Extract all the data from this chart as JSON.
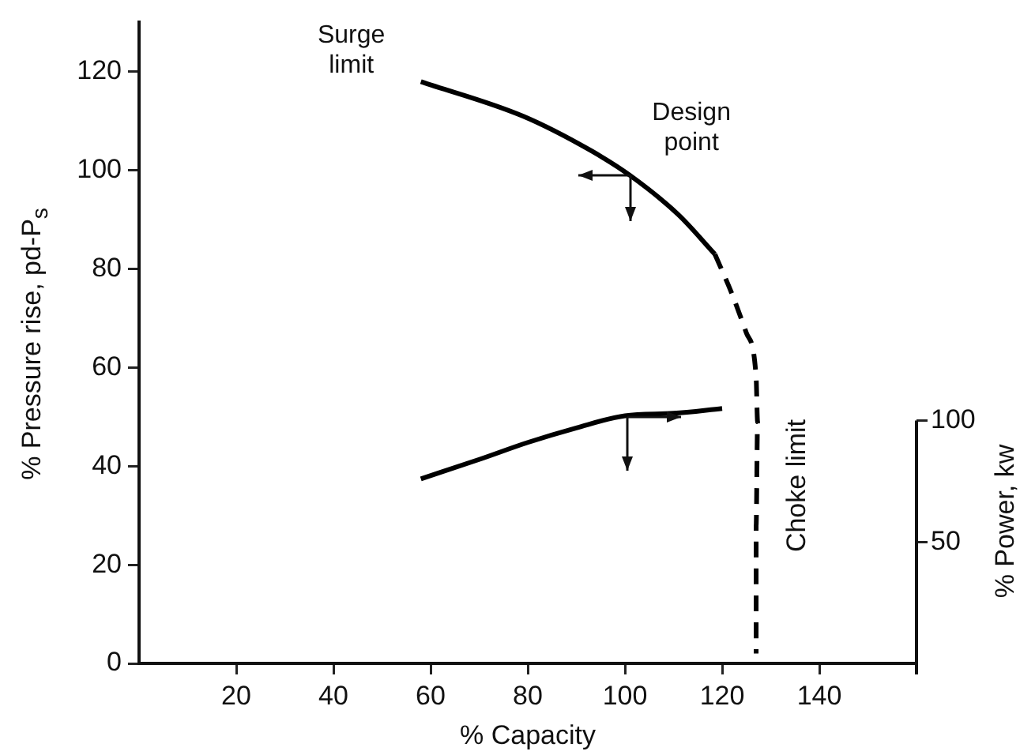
{
  "chart_data": {
    "type": "line",
    "xlabel": "% Capacity",
    "ylabel": "% Pressure rise, pd-P$_{s}$",
    "y2label": "% Power, kw",
    "series": [
      {
        "color": "#000000",
        "x": [
          58,
          79,
          93,
          101,
          111,
          118.5
        ],
        "values": [
          118,
          111,
          104,
          99,
          91,
          83
        ],
        "line_style": "solid"
      },
      {
        "color": "#000000",
        "x": [
          118.5,
          122,
          125,
          127,
          127.3,
          127,
          127
        ],
        "values": [
          83,
          75,
          67,
          58,
          49,
          28,
          2
        ],
        "line_style": "dashed"
      },
      {
        "color": "#000000",
        "axis": "y2",
        "x": [
          58,
          70,
          80,
          90,
          100,
          110,
          120
        ],
        "values": [
          76,
          84,
          91,
          97,
          102,
          103,
          105
        ],
        "line_style": "solid"
      }
    ],
    "xlim": [
      0,
      160
    ],
    "xticks": [
      20,
      40,
      60,
      80,
      100,
      120,
      140
    ],
    "ylim": [
      0,
      130
    ],
    "yticks": [
      0,
      20,
      40,
      60,
      80,
      100,
      120
    ],
    "y2lim": [
      0,
      264
    ],
    "y2ticks": [
      50,
      100
    ],
    "grid": false,
    "legend": false,
    "marker": "none",
    "annotations": [
      {
        "text": "Surge limit",
        "x": 58,
        "y": 118
      },
      {
        "text": "Design point",
        "x": 101,
        "y": 99
      },
      {
        "text": "Choke limit",
        "x": 127,
        "y": 28
      }
    ]
  }
}
